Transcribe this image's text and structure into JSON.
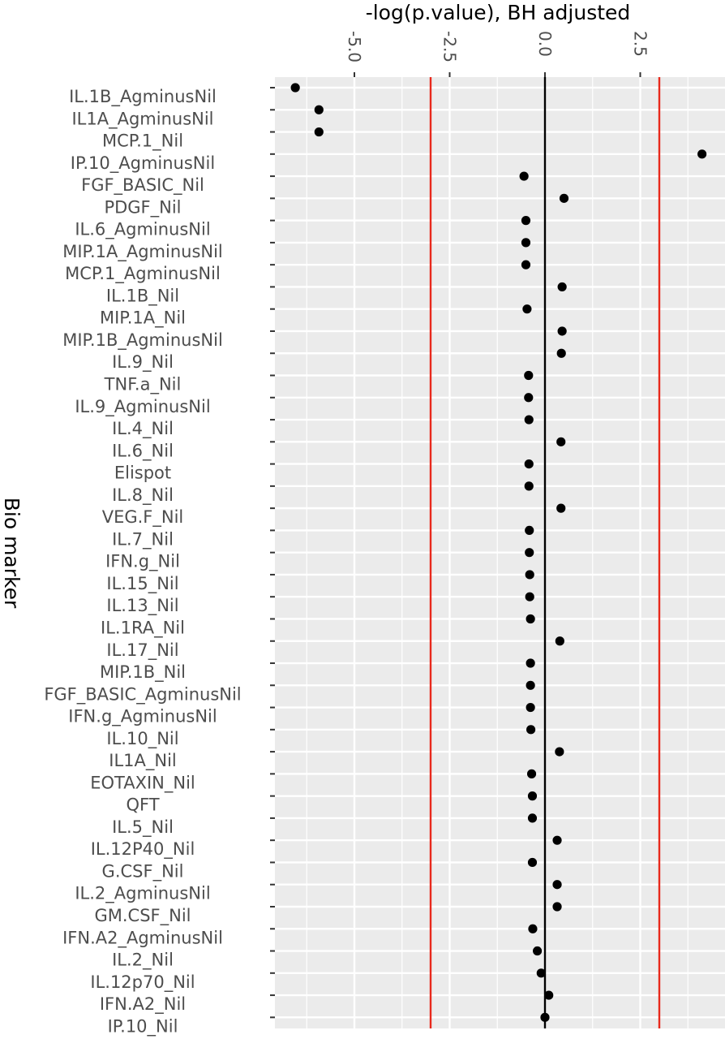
{
  "chart_data": {
    "type": "scatter",
    "title": "",
    "xlabel": "-log(p.value), BH adjusted",
    "ylabel": "Bio marker",
    "xlim": [
      -7.0,
      4.5
    ],
    "x_ticks": [
      -5.0,
      -2.5,
      0.0,
      2.5
    ],
    "x_tick_labels": [
      "-5.0",
      "-2.5",
      "0.0",
      "2.5"
    ],
    "x_axis_position": "top",
    "grid": true,
    "reference_lines": [
      {
        "x": 0.0,
        "color": "#000000"
      },
      {
        "x": -3.0,
        "color": "#e8291c"
      },
      {
        "x": 3.0,
        "color": "#e8291c"
      }
    ],
    "point_color": "#000000",
    "panel_background": "#ebebeb",
    "grid_color": "#ffffff",
    "categories": [
      "IL.1B_AgminusNil",
      "IL1A_AgminusNil",
      "MCP.1_Nil",
      "IP.10_AgminusNil",
      "FGF_BASIC_Nil",
      "PDGF_Nil",
      "IL.6_AgminusNil",
      "MIP.1A_AgminusNil",
      "MCP.1_AgminusNil",
      "IL.1B_Nil",
      "MIP.1A_Nil",
      "MIP.1B_AgminusNil",
      "IL.9_Nil",
      "TNF.a_Nil",
      "IL.9_AgminusNil",
      "IL.4_Nil",
      "IL.6_Nil",
      "Elispot",
      "IL.8_Nil",
      "VEG.F_Nil",
      "IL.7_Nil",
      "IFN.g_Nil",
      "IL.15_Nil",
      "IL.13_Nil",
      "IL.1RA_Nil",
      "IL.17_Nil",
      "MIP.1B_Nil",
      "FGF_BASIC_AgminusNil",
      "IFN.g_AgminusNil",
      "IL.10_Nil",
      "IL1A_Nil",
      "EOTAXIN_Nil",
      "QFT",
      "IL.5_Nil",
      "IL.12P40_Nil",
      "G.CSF_Nil",
      "IL.2_AgminusNil",
      "GM.CSF_Nil",
      "IFN.A2_AgminusNil",
      "IL.2_Nil",
      "IL.12p70_Nil",
      "IFN.A2_Nil",
      "IP.10_Nil"
    ],
    "values": [
      -6.55,
      -5.93,
      -5.93,
      4.12,
      -0.55,
      0.5,
      -0.5,
      -0.5,
      -0.5,
      0.45,
      -0.47,
      0.45,
      0.43,
      -0.43,
      -0.43,
      -0.42,
      0.42,
      -0.42,
      -0.42,
      0.42,
      -0.41,
      -0.41,
      -0.4,
      -0.4,
      -0.38,
      0.39,
      -0.38,
      -0.38,
      -0.38,
      -0.37,
      0.38,
      -0.35,
      -0.33,
      -0.33,
      0.32,
      -0.33,
      0.32,
      0.32,
      -0.32,
      -0.2,
      -0.1,
      0.1,
      0.0
    ]
  }
}
